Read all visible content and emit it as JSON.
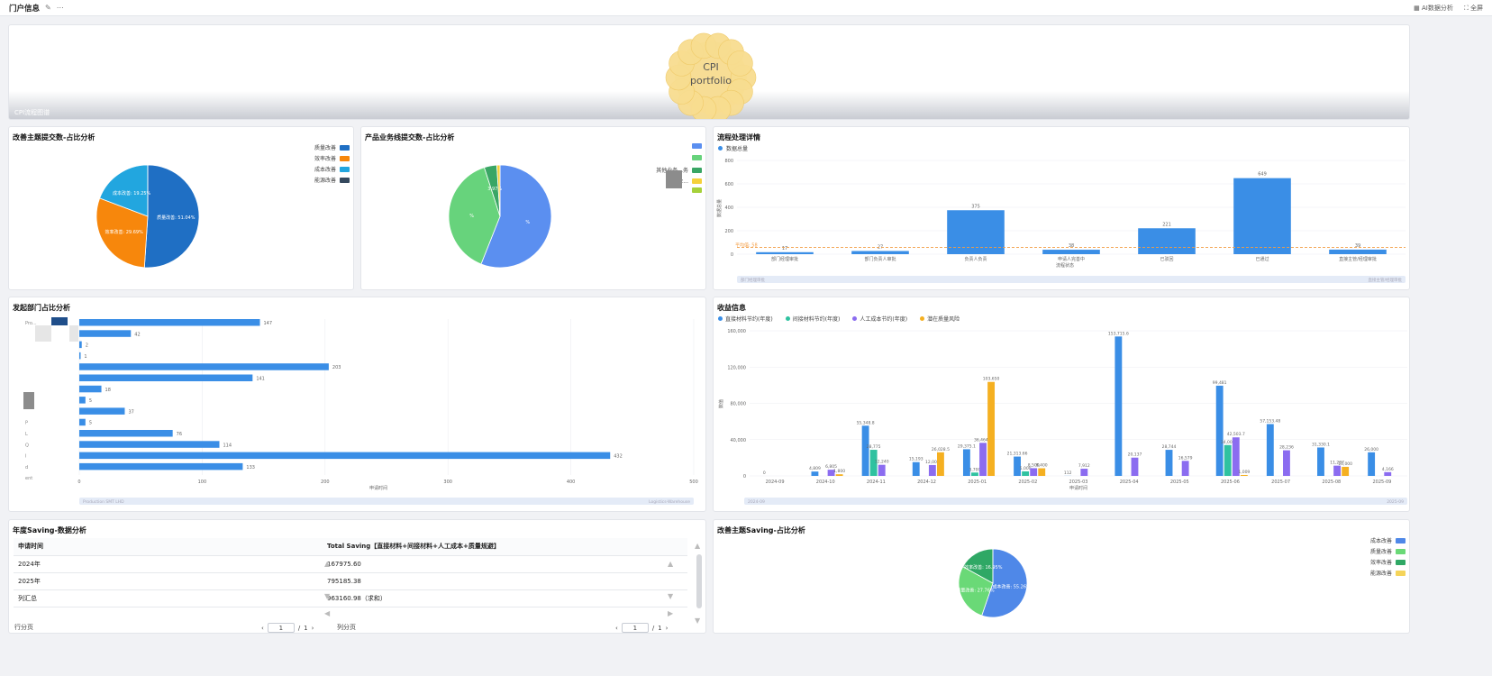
{
  "header": {
    "title": "门户信息",
    "edit_icon": "pencil-icon",
    "more_icon": "more-icon",
    "ai_label": "AI数据分析",
    "fullscreen_label": "全屏"
  },
  "banner": {
    "center_text_1": "CPI",
    "center_text_2": "portfolio",
    "caption": "CPI流程图谱"
  },
  "panel_improve_topic": {
    "title": "改善主题提交数-占比分析",
    "legend": [
      "质量改善",
      "效率改善",
      "成本改善",
      "能源改善"
    ],
    "slice_labels": [
      "质量改善: 51.04%",
      "效率改善: 29.69%",
      "成本改善: 19.25%"
    ]
  },
  "panel_product_line": {
    "title": "产品业务线提交数-占比分析",
    "legend_partial": [
      "其他业务...务",
      "业...",
      ""
    ],
    "slice_labels": [
      "%",
      "%",
      "3.97%"
    ]
  },
  "panel_flow": {
    "title": "流程处理详情",
    "legend": "数据总量",
    "ylabel": "数据总量",
    "xlabel": "流程状态",
    "avg_label": "平均值: 58",
    "slider_left": "部门经理审批",
    "slider_right": "直接主管/经理审批"
  },
  "panel_dept": {
    "title": "发起部门占比分析",
    "xlabel": "申请时间",
    "slider_left": "Production SMT LHD",
    "slider_right": "Logistics-Warehouse",
    "row_labels": [
      "Pro...",
      "",
      "",
      "",
      "",
      "",
      "",
      "",
      "",
      "P",
      "L",
      "Q",
      "I",
      "d",
      "ent"
    ]
  },
  "panel_income": {
    "title": "收益信息",
    "legend": [
      "直接材料节约(年度)",
      "间接材料节约(年度)",
      "人工成本节约(年度)",
      "潜在质量风险"
    ],
    "ylabel": "数值",
    "xlabel": "申请时间",
    "slider_left": "2024-09",
    "slider_right": "2025-09"
  },
  "panel_saving": {
    "title": "年度Saving-数据分析",
    "col1": "申请时间",
    "col2": "Total Saving【直接材料+间接材料+人工成本+质量规避】",
    "rows": [
      {
        "k": "2024年",
        "v": "167975.60"
      },
      {
        "k": "2025年",
        "v": "795185.38"
      },
      {
        "k": "列汇总",
        "v": "963160.98（求和）"
      }
    ],
    "row_pager": "行分页",
    "col_pager": "列分页",
    "page": "1",
    "total": "1",
    "sep": "/"
  },
  "panel_saving_topic": {
    "title": "改善主题Saving-占比分析",
    "legend": [
      "成本改善",
      "质量改善",
      "效率改善",
      "能源改善"
    ],
    "slice_labels": [
      "成本改善: 55.26%",
      "质量改善: 27.76%",
      "效率改善: 16.95%"
    ]
  },
  "colors": {
    "blue": "#3a8ee6",
    "green": "#2fc25b",
    "purple": "#8b6cf0",
    "orange": "#f5a623",
    "teal": "#13c2c2"
  },
  "chart_data": [
    {
      "type": "pie",
      "title": "改善主题提交数-占比分析",
      "categories": [
        "质量改善",
        "效率改善",
        "成本改善",
        "能源改善"
      ],
      "values": [
        51.04,
        29.69,
        19.25,
        0.02
      ],
      "colors": [
        "#1f6fc4",
        "#f7870c",
        "#22a6df",
        "#35495e"
      ]
    },
    {
      "type": "pie",
      "title": "产品业务线提交数-占比分析",
      "values": [
        56,
        39,
        3.97,
        1
      ],
      "colors": [
        "#5b8ff0",
        "#67d37c",
        "#3aa665",
        "#f5d13b"
      ]
    },
    {
      "type": "bar",
      "title": "流程处理详情",
      "categories": [
        "部门经理审批",
        "部门负责人审批",
        "负责人负责",
        "申请人完善中",
        "已驳回",
        "已通过",
        "直接主管/经理审批"
      ],
      "values": [
        17,
        27,
        375,
        38,
        221,
        649,
        39
      ],
      "ylim": [
        0,
        800
      ],
      "average": 58
    },
    {
      "type": "bar",
      "title": "发起部门占比分析",
      "orientation": "horizontal",
      "values": [
        147,
        42,
        2,
        1,
        203,
        141,
        18,
        5,
        37,
        5,
        76,
        114,
        432,
        133
      ],
      "xlim": [
        0,
        500
      ]
    },
    {
      "type": "bar",
      "title": "收益信息",
      "categories": [
        "2024-09",
        "2024-10",
        "2024-11",
        "2024-12",
        "2025-01",
        "2025-02",
        "2025-03",
        "2025-04",
        "2025-05",
        "2025-06",
        "2025-07",
        "2025-08",
        "2025-09"
      ],
      "series": [
        {
          "name": "直接材料节约(年度)",
          "values": [
            0,
            4809,
            55348.8,
            15193,
            29375.1,
            21313.66,
            112,
            153715.6,
            28744,
            99481,
            57153.48,
            31330.1,
            26000
          ]
        },
        {
          "name": "间接材料节约(年度)",
          "values": [
            0,
            0,
            28775,
            0,
            3700,
            5000,
            0,
            0,
            0,
            34000,
            0,
            0,
            0
          ]
        },
        {
          "name": "人工成本节约(年度)",
          "values": [
            0,
            6805,
            12240,
            12000,
            36464.8,
            8500,
            7912,
            20137,
            16579,
            42503.7,
            28236,
            11287,
            4166
          ]
        },
        {
          "name": "潜在质量风险",
          "values": [
            0,
            1800,
            0,
            26028.5,
            103650,
            8400,
            0,
            0,
            0,
            1009,
            0,
            10000,
            0
          ]
        }
      ],
      "ylim": [
        0,
        160000
      ]
    },
    {
      "type": "pie",
      "title": "改善主题Saving-占比分析",
      "categories": [
        "成本改善",
        "质量改善",
        "效率改善",
        "能源改善"
      ],
      "values": [
        55.26,
        27.76,
        16.95,
        0.03
      ],
      "colors": [
        "#4f88e8",
        "#6ad977",
        "#2fa865",
        "#f5d45a"
      ]
    }
  ]
}
